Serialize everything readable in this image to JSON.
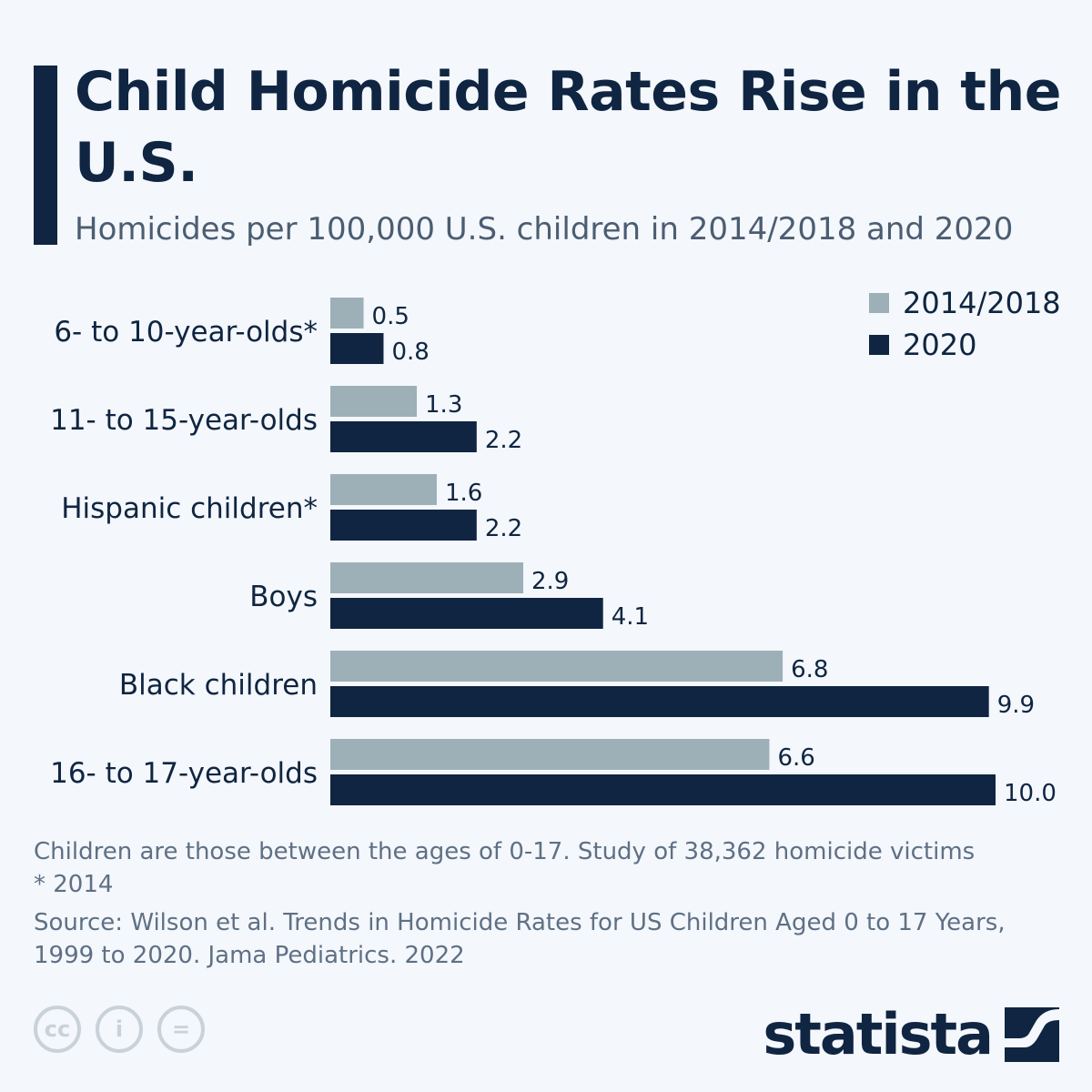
{
  "header": {
    "title": "Child Homicide Rates Rise in the U.S.",
    "subtitle": "Homicides per 100,000 U.S. children in 2014/2018 and 2020"
  },
  "chart_data": {
    "type": "bar",
    "orientation": "horizontal",
    "categories": [
      "6- to 10-year-olds*",
      "11- to 15-year-olds",
      "Hispanic children*",
      "Boys",
      "Black children",
      "16- to 17-year-olds"
    ],
    "series": [
      {
        "name": "2014/2018",
        "color": "#9db0b8",
        "values": [
          0.5,
          1.3,
          1.6,
          2.9,
          6.8,
          6.6
        ],
        "labels": [
          "0.5",
          "1.3",
          "1.6",
          "2.9",
          "6.8",
          "6.6"
        ]
      },
      {
        "name": "2020",
        "color": "#0f2541",
        "values": [
          0.8,
          2.2,
          2.2,
          4.1,
          9.9,
          10.0
        ],
        "labels": [
          "0.8",
          "2.2",
          "2.2",
          "4.1",
          "9.9",
          "10.0"
        ]
      }
    ],
    "xlim": [
      0,
      10
    ],
    "grid": false,
    "legend_position": "top-right"
  },
  "footer": {
    "note": "Children are those between the ages of 0-17. Study of 38,362 homicide victims",
    "asterisk": "* 2014",
    "source": "Source: Wilson et al. Trends in Homicide Rates for US Children Aged 0 to 17 Years, 1999 to 2020. Jama Pediatrics. 2022",
    "icons": [
      "cc-icon",
      "attribution-icon",
      "no-derivatives-icon"
    ],
    "brand": "statista"
  }
}
